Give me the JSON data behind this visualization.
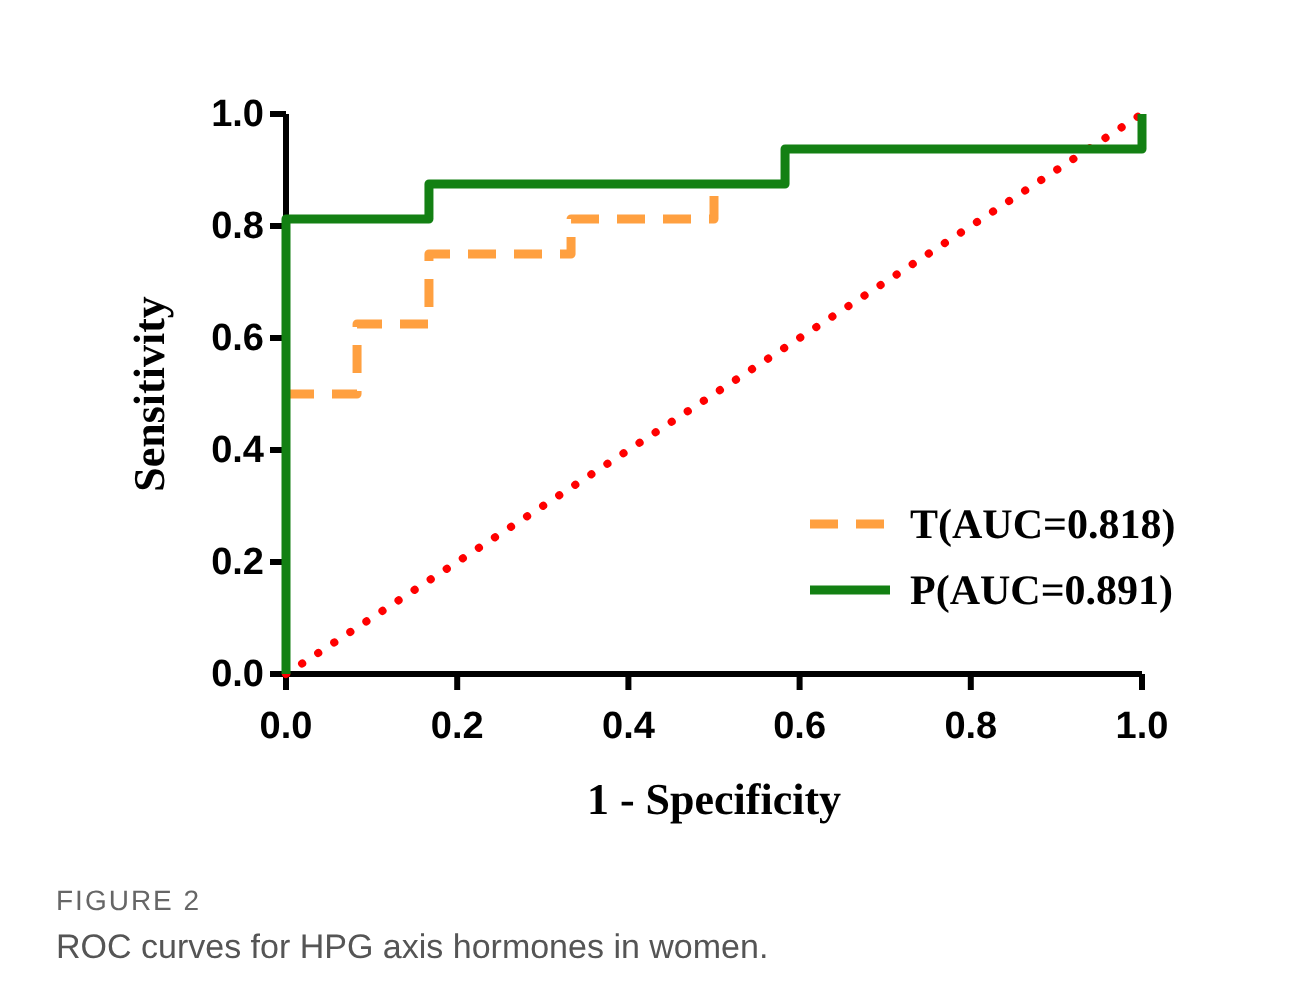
{
  "chart_data": {
    "type": "line",
    "xlabel": "1 - Specificity",
    "ylabel": "Sensitivity",
    "xlim": [
      0,
      1
    ],
    "ylim": [
      0,
      1
    ],
    "xticks": [
      {
        "value": 0,
        "label": "0.0"
      },
      {
        "value": 0.2,
        "label": "0.2"
      },
      {
        "value": 0.4,
        "label": "0.4"
      },
      {
        "value": 0.6,
        "label": "0.6"
      },
      {
        "value": 0.8,
        "label": "0.8"
      },
      {
        "value": 1,
        "label": "1.0"
      }
    ],
    "yticks": [
      {
        "value": 0,
        "label": "0.0"
      },
      {
        "value": 0.2,
        "label": "0.2"
      },
      {
        "value": 0.4,
        "label": "0.4"
      },
      {
        "value": 0.6,
        "label": "0.6"
      },
      {
        "value": 0.8,
        "label": "0.8"
      },
      {
        "value": 1,
        "label": "1.0"
      }
    ],
    "grid": false,
    "legend": "right",
    "series": [
      {
        "name": null,
        "color": "#ff0000",
        "line_style": "dotted",
        "x": [
          0,
          1
        ],
        "values": [
          0,
          1
        ]
      },
      {
        "name": "T(AUC=0.818)",
        "color": "#ffa040",
        "line_style": "dashed",
        "x": [
          0,
          0.083,
          0.083,
          0.167,
          0.167,
          0.333,
          0.333,
          0.5,
          0.5
        ],
        "values": [
          0.5,
          0.5,
          0.625,
          0.625,
          0.75,
          0.75,
          0.8125,
          0.8125,
          0.865
        ]
      },
      {
        "name": "P(AUC=0.891)",
        "color": "#138013",
        "line_style": "solid",
        "x": [
          0,
          0,
          0.167,
          0.167,
          0.583,
          0.583,
          1,
          1
        ],
        "values": [
          0,
          0.8125,
          0.8125,
          0.875,
          0.875,
          0.9375,
          0.9375,
          1
        ]
      }
    ],
    "annotations": [
      "FIGURE 2",
      "ROC curves for HPG axis hormones in women."
    ]
  }
}
